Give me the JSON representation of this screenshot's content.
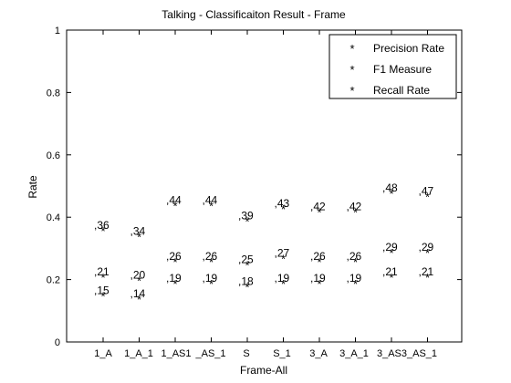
{
  "chart_data": {
    "type": "scatter",
    "title": "Talking - Classificaiton Result - Frame",
    "xlabel": "Frame-All",
    "ylabel": "Rate",
    "categories": [
      "1_A",
      "1_A_1",
      "1_AS1",
      "_AS_1",
      "S",
      "S_1",
      "3_A",
      "3_A_1",
      "3_AS",
      "3_AS_1"
    ],
    "category_label_texts": [
      "1_A",
      "1_A_1",
      "1_AS1",
      "_AS_1",
      "S",
      "S_1",
      "3_A",
      "3_A_1",
      "3_AS3_AS_1"
    ],
    "ylim": [
      0,
      1
    ],
    "yticks": [
      "0",
      "0.2",
      "0.4",
      "0.6",
      "0.8",
      "1"
    ],
    "grid": false,
    "legend_position": "top-right",
    "marker": "*",
    "series": [
      {
        "name": "Precision Rate",
        "color": "#ff0000",
        "values": [
          0.15,
          0.14,
          0.19,
          0.19,
          0.18,
          0.19,
          0.19,
          0.19,
          0.21,
          0.21
        ],
        "labels": [
          ",15",
          ",14",
          ",19",
          ",19",
          ",18",
          ",19",
          ",19",
          ",19",
          ",21",
          ",21"
        ]
      },
      {
        "name": "F1 Measure",
        "color": "#0000ff",
        "values": [
          0.21,
          0.2,
          0.26,
          0.26,
          0.25,
          0.27,
          0.26,
          0.26,
          0.29,
          0.29
        ],
        "labels": [
          ",21",
          ",20",
          ",26",
          ",26",
          ",25",
          ",27",
          ",26",
          ",26",
          ",29",
          ",29"
        ]
      },
      {
        "name": "Recall Rate",
        "color": "#00ff00",
        "values": [
          0.36,
          0.34,
          0.44,
          0.44,
          0.39,
          0.43,
          0.42,
          0.42,
          0.48,
          0.47
        ],
        "labels": [
          ",36",
          ",34",
          ",44",
          ",44",
          ",39",
          ",43",
          ",42",
          ",42",
          ",48",
          ",47"
        ]
      }
    ]
  }
}
